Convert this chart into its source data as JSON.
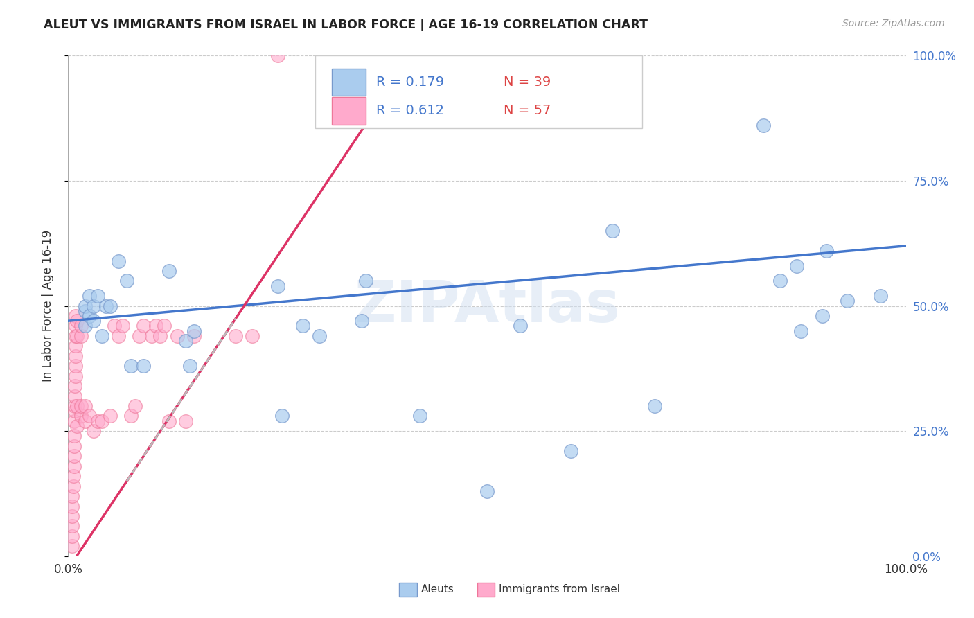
{
  "title": "ALEUT VS IMMIGRANTS FROM ISRAEL IN LABOR FORCE | AGE 16-19 CORRELATION CHART",
  "source": "Source: ZipAtlas.com",
  "ylabel": "In Labor Force | Age 16-19",
  "xlim": [
    0.0,
    1.0
  ],
  "ylim": [
    0.0,
    1.0
  ],
  "yticks": [
    0.0,
    0.25,
    0.5,
    0.75,
    1.0
  ],
  "ytick_labels": [
    "0.0%",
    "25.0%",
    "50.0%",
    "75.0%",
    "100.0%"
  ],
  "blue_color": "#aaccee",
  "pink_color": "#ffaacc",
  "blue_edge": "#7799cc",
  "pink_edge": "#ee7799",
  "trend_blue": "#4477cc",
  "trend_pink": "#dd3366",
  "trend_gray": "#bbbbbb",
  "legend_r_blue": "0.179",
  "legend_n_blue": "39",
  "legend_r_pink": "0.612",
  "legend_n_pink": "57",
  "watermark": "ZIPAtlas",
  "blue_points_x": [
    0.02,
    0.02,
    0.02,
    0.025,
    0.025,
    0.03,
    0.03,
    0.035,
    0.04,
    0.045,
    0.05,
    0.06,
    0.07,
    0.075,
    0.09,
    0.12,
    0.14,
    0.145,
    0.15,
    0.25,
    0.255,
    0.28,
    0.3,
    0.35,
    0.355,
    0.42,
    0.5,
    0.54,
    0.6,
    0.65,
    0.7,
    0.83,
    0.85,
    0.87,
    0.875,
    0.9,
    0.905,
    0.93,
    0.97
  ],
  "blue_points_y": [
    0.46,
    0.49,
    0.5,
    0.52,
    0.48,
    0.47,
    0.5,
    0.52,
    0.44,
    0.5,
    0.5,
    0.59,
    0.55,
    0.38,
    0.38,
    0.57,
    0.43,
    0.38,
    0.45,
    0.54,
    0.28,
    0.46,
    0.44,
    0.47,
    0.55,
    0.28,
    0.13,
    0.46,
    0.21,
    0.65,
    0.3,
    0.86,
    0.55,
    0.58,
    0.45,
    0.48,
    0.61,
    0.51,
    0.52
  ],
  "pink_points_x": [
    0.005,
    0.005,
    0.005,
    0.005,
    0.005,
    0.005,
    0.006,
    0.006,
    0.007,
    0.007,
    0.007,
    0.007,
    0.007,
    0.008,
    0.008,
    0.008,
    0.008,
    0.009,
    0.009,
    0.009,
    0.009,
    0.009,
    0.009,
    0.009,
    0.01,
    0.01,
    0.01,
    0.01,
    0.015,
    0.015,
    0.015,
    0.015,
    0.02,
    0.02,
    0.025,
    0.03,
    0.035,
    0.04,
    0.05,
    0.055,
    0.06,
    0.065,
    0.075,
    0.08,
    0.085,
    0.09,
    0.1,
    0.105,
    0.11,
    0.115,
    0.12,
    0.13,
    0.14,
    0.15,
    0.2,
    0.22,
    0.25
  ],
  "pink_points_y": [
    0.02,
    0.04,
    0.06,
    0.08,
    0.1,
    0.12,
    0.14,
    0.16,
    0.18,
    0.2,
    0.22,
    0.24,
    0.27,
    0.29,
    0.3,
    0.32,
    0.34,
    0.36,
    0.38,
    0.4,
    0.42,
    0.44,
    0.46,
    0.48,
    0.26,
    0.3,
    0.44,
    0.47,
    0.28,
    0.3,
    0.44,
    0.46,
    0.27,
    0.3,
    0.28,
    0.25,
    0.27,
    0.27,
    0.28,
    0.46,
    0.44,
    0.46,
    0.28,
    0.3,
    0.44,
    0.46,
    0.44,
    0.46,
    0.44,
    0.46,
    0.27,
    0.44,
    0.27,
    0.44,
    0.44,
    0.44,
    1.0
  ],
  "blue_trend_y_start": 0.47,
  "blue_trend_y_end": 0.62,
  "pink_slope": 2.5,
  "pink_intercept": -0.025
}
